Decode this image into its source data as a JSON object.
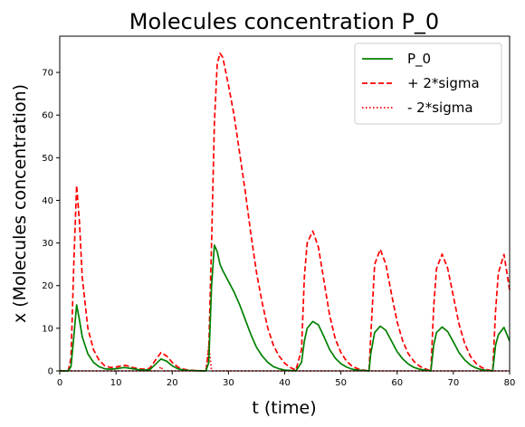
{
  "chart_data": {
    "type": "line",
    "title": "Molecules concentration P_0",
    "xlabel": "t (time)",
    "ylabel": "x (Molecules concentration)",
    "xlim": [
      0,
      80
    ],
    "ylim": [
      0,
      78.5
    ],
    "xticks": [
      0,
      10,
      20,
      30,
      40,
      50,
      60,
      70,
      80
    ],
    "yticks": [
      0,
      10,
      20,
      30,
      40,
      50,
      60,
      70
    ],
    "grid": false,
    "legend_position": "top-right",
    "series": [
      {
        "name": "P_0",
        "color": "#008000",
        "style": "solid",
        "points": [
          [
            0,
            0
          ],
          [
            1.5,
            0
          ],
          [
            2,
            1
          ],
          [
            2.5,
            8
          ],
          [
            3,
            15.5
          ],
          [
            3.5,
            12
          ],
          [
            4,
            8
          ],
          [
            5,
            4
          ],
          [
            6,
            2
          ],
          [
            7,
            1
          ],
          [
            8,
            0.5
          ],
          [
            9,
            0.4
          ],
          [
            10,
            0.5
          ],
          [
            11,
            0.7
          ],
          [
            11.5,
            0.8
          ],
          [
            12,
            0.7
          ],
          [
            13,
            0.5
          ],
          [
            14,
            0.3
          ],
          [
            15,
            0.2
          ],
          [
            16,
            0.3
          ],
          [
            17,
            1.5
          ],
          [
            18,
            2.8
          ],
          [
            19,
            2.3
          ],
          [
            20,
            1.2
          ],
          [
            21,
            0.5
          ],
          [
            22,
            0.2
          ],
          [
            23,
            0.1
          ],
          [
            24,
            0.05
          ],
          [
            25,
            0.02
          ],
          [
            26,
            0
          ],
          [
            26.5,
            2
          ],
          [
            27,
            20
          ],
          [
            27.5,
            29.5
          ],
          [
            28,
            28
          ],
          [
            28.5,
            25
          ],
          [
            29,
            23.5
          ],
          [
            30,
            21
          ],
          [
            31,
            18.5
          ],
          [
            32,
            15.5
          ],
          [
            33,
            12
          ],
          [
            34,
            8.5
          ],
          [
            35,
            5.5
          ],
          [
            36,
            3.5
          ],
          [
            37,
            2
          ],
          [
            38,
            1
          ],
          [
            39,
            0.5
          ],
          [
            40,
            0.2
          ],
          [
            41,
            0.1
          ],
          [
            42,
            0
          ],
          [
            43,
            2
          ],
          [
            43.5,
            7
          ],
          [
            44,
            10
          ],
          [
            45,
            11.6
          ],
          [
            46,
            10.8
          ],
          [
            47,
            8
          ],
          [
            48,
            5
          ],
          [
            49,
            3
          ],
          [
            50,
            1.7
          ],
          [
            51,
            0.9
          ],
          [
            52,
            0.4
          ],
          [
            53,
            0.2
          ],
          [
            54,
            0.1
          ],
          [
            55,
            0
          ],
          [
            55.3,
            4
          ],
          [
            56,
            9
          ],
          [
            57,
            10.5
          ],
          [
            58,
            9.5
          ],
          [
            59,
            7
          ],
          [
            60,
            4.5
          ],
          [
            61,
            2.8
          ],
          [
            62,
            1.6
          ],
          [
            63,
            0.8
          ],
          [
            64,
            0.4
          ],
          [
            65,
            0.2
          ],
          [
            66,
            0
          ],
          [
            66.5,
            6
          ],
          [
            67,
            9
          ],
          [
            68,
            10.3
          ],
          [
            69,
            9.2
          ],
          [
            70,
            6.8
          ],
          [
            71,
            4.3
          ],
          [
            72,
            2.6
          ],
          [
            73,
            1.4
          ],
          [
            74,
            0.7
          ],
          [
            75,
            0.3
          ],
          [
            76,
            0.1
          ],
          [
            77,
            0
          ],
          [
            77.5,
            6
          ],
          [
            78,
            8.5
          ],
          [
            79,
            10.2
          ],
          [
            80,
            7
          ]
        ]
      },
      {
        "name": "+ 2*sigma",
        "color": "#ff0000",
        "style": "dashed",
        "points": [
          [
            0,
            0
          ],
          [
            1.5,
            0
          ],
          [
            2,
            3
          ],
          [
            2.5,
            25
          ],
          [
            3,
            43.5
          ],
          [
            3.5,
            35
          ],
          [
            4,
            22
          ],
          [
            5,
            10
          ],
          [
            6,
            5
          ],
          [
            7,
            2.5
          ],
          [
            8,
            1.2
          ],
          [
            9,
            0.8
          ],
          [
            10,
            0.9
          ],
          [
            11,
            1.2
          ],
          [
            11.5,
            1.3
          ],
          [
            12,
            1.2
          ],
          [
            13,
            0.8
          ],
          [
            14,
            0.5
          ],
          [
            15,
            0.4
          ],
          [
            16,
            0.6
          ],
          [
            17,
            2.5
          ],
          [
            18,
            4.3
          ],
          [
            19,
            3.5
          ],
          [
            20,
            2
          ],
          [
            21,
            0.9
          ],
          [
            22,
            0.4
          ],
          [
            23,
            0.2
          ],
          [
            24,
            0.1
          ],
          [
            25,
            0.05
          ],
          [
            26,
            0
          ],
          [
            26.5,
            5
          ],
          [
            27,
            30
          ],
          [
            27.5,
            58
          ],
          [
            28,
            72
          ],
          [
            28.5,
            74.5
          ],
          [
            29,
            73.5
          ],
          [
            30,
            67
          ],
          [
            31,
            60
          ],
          [
            32,
            51
          ],
          [
            33,
            42
          ],
          [
            34,
            32
          ],
          [
            35,
            23
          ],
          [
            36,
            16
          ],
          [
            37,
            10
          ],
          [
            38,
            6
          ],
          [
            39,
            3.5
          ],
          [
            40,
            1.8
          ],
          [
            41,
            0.8
          ],
          [
            42,
            0.2
          ],
          [
            43,
            5
          ],
          [
            43.5,
            22
          ],
          [
            44,
            30
          ],
          [
            45,
            32.8
          ],
          [
            46,
            29
          ],
          [
            47,
            21
          ],
          [
            48,
            13
          ],
          [
            49,
            7.5
          ],
          [
            50,
            4.3
          ],
          [
            51,
            2.3
          ],
          [
            52,
            1.1
          ],
          [
            53,
            0.5
          ],
          [
            54,
            0.2
          ],
          [
            55,
            0
          ],
          [
            55.3,
            8
          ],
          [
            56,
            25
          ],
          [
            57,
            28.5
          ],
          [
            58,
            25
          ],
          [
            59,
            18
          ],
          [
            60,
            11.5
          ],
          [
            61,
            7
          ],
          [
            62,
            4
          ],
          [
            63,
            2.2
          ],
          [
            64,
            1.1
          ],
          [
            65,
            0.5
          ],
          [
            66,
            0
          ],
          [
            66.5,
            15
          ],
          [
            67,
            24
          ],
          [
            68,
            27.4
          ],
          [
            69,
            24
          ],
          [
            70,
            17.5
          ],
          [
            71,
            11
          ],
          [
            72,
            6.5
          ],
          [
            73,
            3.5
          ],
          [
            74,
            1.8
          ],
          [
            75,
            0.8
          ],
          [
            76,
            0.3
          ],
          [
            77,
            0
          ],
          [
            77.5,
            14
          ],
          [
            78,
            23
          ],
          [
            79,
            27.3
          ],
          [
            80,
            19
          ]
        ]
      },
      {
        "name": "- 2*sigma",
        "color": "#ff0000",
        "style": "dotted",
        "points": [
          [
            0,
            0
          ],
          [
            17.5,
            0
          ],
          [
            18,
            1
          ],
          [
            18.5,
            0
          ],
          [
            26,
            0
          ],
          [
            26.5,
            6
          ],
          [
            27,
            0
          ],
          [
            80,
            0
          ]
        ]
      }
    ]
  }
}
